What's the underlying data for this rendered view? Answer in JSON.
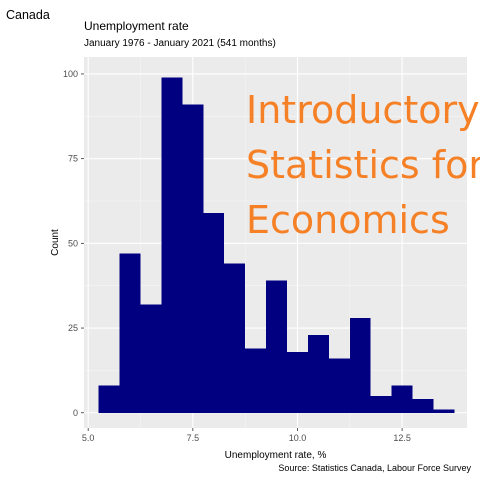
{
  "header": {
    "country": "Canada"
  },
  "chart_data": {
    "type": "bar",
    "subtype": "histogram",
    "title": "Unemployment rate",
    "subtitle": "January 1976 - January 2021 (541 months)",
    "xlabel": "Unemployment rate, %",
    "ylabel": "Count",
    "caption": "Source: Statistics Canada, Labour Force Survey",
    "bin_width": 0.5,
    "bins": [
      {
        "start": 5.25,
        "end": 5.75,
        "count": 8
      },
      {
        "start": 5.75,
        "end": 6.25,
        "count": 47
      },
      {
        "start": 6.25,
        "end": 6.75,
        "count": 32
      },
      {
        "start": 6.75,
        "end": 7.25,
        "count": 99
      },
      {
        "start": 7.25,
        "end": 7.75,
        "count": 91
      },
      {
        "start": 7.75,
        "end": 8.25,
        "count": 59
      },
      {
        "start": 8.25,
        "end": 8.75,
        "count": 44
      },
      {
        "start": 8.75,
        "end": 9.25,
        "count": 19
      },
      {
        "start": 9.25,
        "end": 9.75,
        "count": 39
      },
      {
        "start": 9.75,
        "end": 10.25,
        "count": 18
      },
      {
        "start": 10.25,
        "end": 10.75,
        "count": 23
      },
      {
        "start": 10.75,
        "end": 11.25,
        "count": 16
      },
      {
        "start": 11.25,
        "end": 11.75,
        "count": 28
      },
      {
        "start": 11.75,
        "end": 12.25,
        "count": 5
      },
      {
        "start": 12.25,
        "end": 12.75,
        "count": 8
      },
      {
        "start": 12.75,
        "end": 13.25,
        "count": 4
      },
      {
        "start": 13.25,
        "end": 13.75,
        "count": 1
      }
    ],
    "xlim": [
      4.9,
      14.05
    ],
    "ylim": [
      -4.5,
      105
    ],
    "x_ticks": [
      "5.0",
      "7.5",
      "10.0",
      "12.5"
    ],
    "x_tick_values": [
      5.0,
      7.5,
      10.0,
      12.5
    ],
    "y_ticks": [
      "0",
      "25",
      "50",
      "75",
      "100"
    ],
    "y_tick_values": [
      0,
      25,
      50,
      75,
      100
    ],
    "grid": true,
    "legend": "none",
    "colors": {
      "bar_fill": "#000080",
      "panel_background": "#ebebeb",
      "grid_major": "#ffffff",
      "grid_minor": "#f5f5f5",
      "tick": "#333333",
      "tick_text": "#4d4d4d"
    }
  },
  "watermark": {
    "lines": [
      "Introductory",
      "Statistics for",
      "Economics"
    ],
    "color": "#f58025"
  }
}
